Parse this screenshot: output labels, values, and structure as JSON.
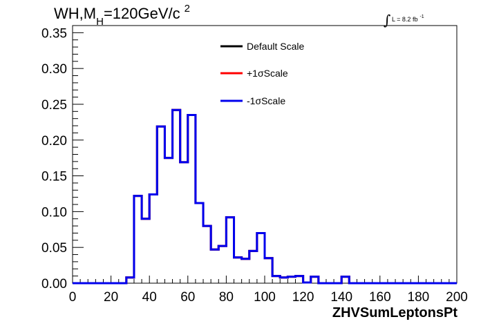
{
  "chart_data": {
    "type": "line",
    "title": {
      "prefix": "WH,M",
      "subscript": "H",
      "main": "=120GeV/c",
      "superscript": "2"
    },
    "lumi": {
      "integral": "∫",
      "text": "L = 8.2 fb",
      "superscript": "-1"
    },
    "xlabel": "ZHVSumLeptonsPt",
    "ylabel": "",
    "xlim": [
      0,
      200
    ],
    "ylim": [
      0,
      0.36
    ],
    "xticks": [
      "0",
      "20",
      "40",
      "60",
      "80",
      "100",
      "120",
      "140",
      "160",
      "180",
      "200"
    ],
    "yticks": [
      "0.00",
      "0.05",
      "0.10",
      "0.15",
      "0.20",
      "0.25",
      "0.30",
      "0.35"
    ],
    "grid": false,
    "legend_position": "top-right",
    "bin_edges": [
      0,
      4,
      8,
      12,
      16,
      20,
      24,
      28,
      32,
      36,
      40,
      44,
      48,
      52,
      56,
      60,
      64,
      68,
      72,
      76,
      80,
      84,
      88,
      92,
      96,
      100,
      104,
      108,
      112,
      116,
      120,
      124,
      128,
      132,
      136,
      140,
      144,
      148,
      152,
      156,
      160,
      164,
      168,
      172,
      176,
      180,
      184,
      188,
      192,
      196,
      200
    ],
    "series": [
      {
        "name": "Default Scale",
        "color": "#000000",
        "values": [
          0,
          0,
          0,
          0,
          0,
          0,
          0,
          0.008,
          0.122,
          0.09,
          0.124,
          0.219,
          0.175,
          0.242,
          0.169,
          0.235,
          0.112,
          0.08,
          0.047,
          0.052,
          0.092,
          0.036,
          0.034,
          0.045,
          0.07,
          0.035,
          0.01,
          0.008,
          0.009,
          0.01,
          0.001,
          0.009,
          0,
          0,
          0,
          0.009,
          0,
          0,
          0,
          0,
          0,
          0,
          0,
          0,
          0,
          0,
          0,
          0,
          0,
          0
        ]
      },
      {
        "name": "+1σScale",
        "color": "#ff0000",
        "values": [
          0,
          0,
          0,
          0,
          0,
          0,
          0,
          0.008,
          0.122,
          0.09,
          0.124,
          0.219,
          0.175,
          0.242,
          0.169,
          0.235,
          0.112,
          0.08,
          0.047,
          0.052,
          0.092,
          0.036,
          0.034,
          0.045,
          0.07,
          0.035,
          0.01,
          0.008,
          0.009,
          0.01,
          0.001,
          0.009,
          0,
          0,
          0,
          0.009,
          0,
          0,
          0,
          0,
          0,
          0,
          0,
          0,
          0,
          0,
          0,
          0,
          0,
          0
        ]
      },
      {
        "name": "-1σScale",
        "color": "#0000ee",
        "values": [
          0,
          0,
          0,
          0,
          0,
          0,
          0,
          0.008,
          0.122,
          0.09,
          0.124,
          0.219,
          0.175,
          0.242,
          0.169,
          0.235,
          0.112,
          0.08,
          0.047,
          0.052,
          0.092,
          0.036,
          0.034,
          0.045,
          0.07,
          0.035,
          0.01,
          0.008,
          0.009,
          0.01,
          0.001,
          0.009,
          0,
          0,
          0,
          0.009,
          0,
          0,
          0,
          0,
          0,
          0,
          0,
          0,
          0,
          0,
          0,
          0,
          0,
          0
        ]
      }
    ]
  }
}
